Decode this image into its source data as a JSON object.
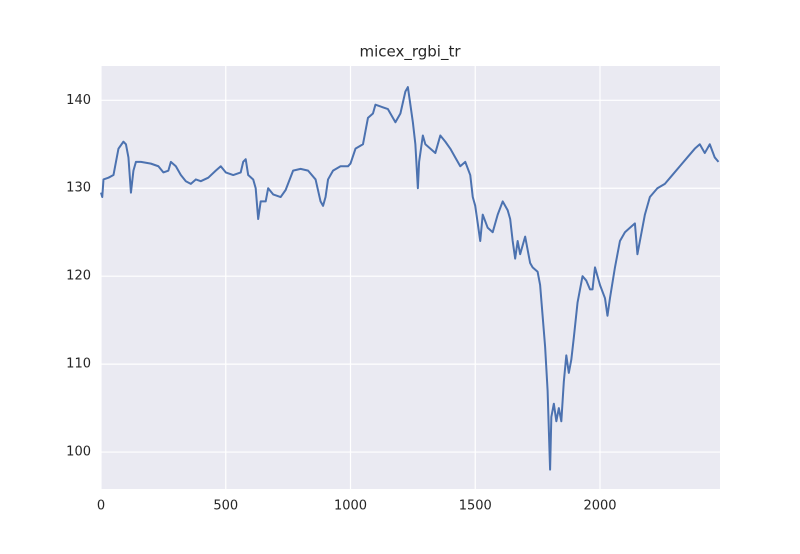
{
  "chart_data": {
    "type": "line",
    "title": "micex_rgbi_tr",
    "x": [
      0,
      5,
      10,
      30,
      50,
      60,
      70,
      90,
      100,
      110,
      120,
      130,
      140,
      160,
      200,
      230,
      250,
      270,
      280,
      300,
      320,
      340,
      360,
      380,
      400,
      430,
      460,
      480,
      500,
      530,
      560,
      570,
      580,
      590,
      610,
      620,
      630,
      640,
      660,
      670,
      690,
      720,
      740,
      770,
      800,
      830,
      860,
      880,
      890,
      900,
      910,
      930,
      960,
      990,
      1000,
      1020,
      1050,
      1070,
      1090,
      1100,
      1120,
      1150,
      1170,
      1180,
      1200,
      1220,
      1230,
      1240,
      1250,
      1260,
      1270,
      1275,
      1290,
      1300,
      1320,
      1340,
      1360,
      1380,
      1400,
      1420,
      1440,
      1460,
      1480,
      1490,
      1500,
      1510,
      1520,
      1530,
      1550,
      1570,
      1590,
      1610,
      1630,
      1640,
      1650,
      1660,
      1670,
      1680,
      1690,
      1700,
      1710,
      1720,
      1730,
      1750,
      1760,
      1780,
      1790,
      1800,
      1805,
      1815,
      1825,
      1835,
      1845,
      1855,
      1865,
      1875,
      1885,
      1895,
      1910,
      1920,
      1930,
      1945,
      1960,
      1970,
      1980,
      2000,
      2020,
      2030,
      2040,
      2060,
      2080,
      2100,
      2120,
      2140,
      2150,
      2160,
      2180,
      2200,
      2230,
      2260,
      2290,
      2320,
      2350,
      2380,
      2400,
      2420,
      2440,
      2460,
      2475
    ],
    "values": [
      129.5,
      129,
      131,
      131.2,
      131.5,
      133,
      134.5,
      135.3,
      135,
      133.5,
      129.5,
      132,
      133,
      133,
      132.8,
      132.5,
      131.8,
      132,
      133,
      132.5,
      131.5,
      130.8,
      130.5,
      131,
      130.8,
      131.2,
      132,
      132.5,
      131.8,
      131.5,
      131.8,
      133,
      133.3,
      131.5,
      131,
      130,
      126.5,
      128.5,
      128.5,
      130,
      129.3,
      129,
      129.8,
      132,
      132.2,
      132,
      131,
      128.5,
      128,
      129,
      131,
      132,
      132.5,
      132.5,
      132.8,
      134.5,
      135,
      138,
      138.5,
      139.5,
      139.3,
      139,
      138,
      137.5,
      138.5,
      141,
      141.5,
      139.5,
      137.5,
      135,
      130,
      133,
      136,
      135,
      134.5,
      134,
      136,
      135.3,
      134.5,
      133.5,
      132.5,
      133,
      131.5,
      129,
      128,
      126,
      124,
      127,
      125.5,
      125,
      127,
      128.5,
      127.5,
      126.5,
      124,
      122,
      124,
      122.5,
      123.5,
      124.5,
      123,
      121.5,
      121,
      120.5,
      119,
      112,
      107,
      98,
      104,
      105.5,
      103.5,
      105,
      103.5,
      108,
      111,
      109,
      110.5,
      113,
      117,
      118.5,
      120,
      119.5,
      118.5,
      118.5,
      121,
      119,
      117.5,
      115.5,
      117.5,
      121,
      124,
      125,
      125.5,
      126,
      122.5,
      124,
      127,
      129,
      130,
      130.5,
      131.5,
      132.5,
      133.5,
      134.5,
      135,
      134,
      135,
      133.5,
      133
    ],
    "color": "#4c72b0",
    "xlim": [
      0,
      2481
    ],
    "ylim": [
      95.8,
      143.9
    ],
    "xticks": [
      0,
      500,
      1000,
      1500,
      2000
    ],
    "yticks": [
      100,
      110,
      120,
      130,
      140
    ],
    "grid": true
  }
}
